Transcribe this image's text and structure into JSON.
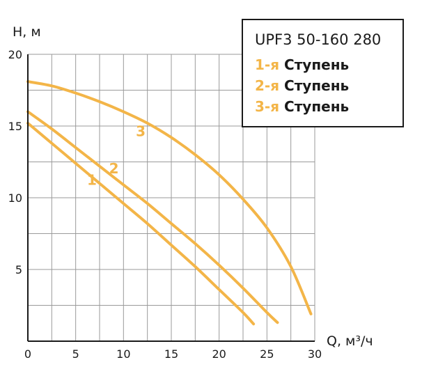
{
  "chart_data": {
    "type": "line",
    "title": "",
    "xlabel": "Q, м³/ч",
    "ylabel": "H, м",
    "xlim": [
      0,
      30
    ],
    "ylim": [
      0,
      20
    ],
    "x_ticks": [
      0,
      5,
      10,
      15,
      20,
      25,
      30
    ],
    "y_ticks": [
      5,
      10,
      15,
      20
    ],
    "x_tick_labels": [
      "0",
      "5",
      "10",
      "15",
      "20",
      "25",
      "30"
    ],
    "y_tick_labels": [
      "5",
      "10",
      "15",
      "20"
    ],
    "grid": true,
    "curve_color": "#f3b548",
    "series": [
      {
        "name": "1",
        "x": [
          0,
          2.5,
          5,
          7.5,
          10,
          12.5,
          15,
          17.5,
          20,
          22.5,
          23.6
        ],
        "y": [
          15.2,
          13.8,
          12.4,
          11.0,
          9.6,
          8.2,
          6.7,
          5.2,
          3.6,
          2.0,
          1.2
        ]
      },
      {
        "name": "2",
        "x": [
          0,
          2.5,
          5,
          7.5,
          10,
          12.5,
          15,
          17.5,
          20,
          22.5,
          25,
          26.1
        ],
        "y": [
          16.0,
          14.8,
          13.5,
          12.2,
          10.9,
          9.6,
          8.2,
          6.8,
          5.3,
          3.7,
          2.0,
          1.3
        ]
      },
      {
        "name": "3",
        "x": [
          0,
          2.5,
          5,
          7.5,
          10,
          12.5,
          15,
          17.5,
          20,
          22.5,
          25,
          27.5,
          29.6
        ],
        "y": [
          18.1,
          17.8,
          17.3,
          16.7,
          16.0,
          15.2,
          14.2,
          13.0,
          11.6,
          9.9,
          7.9,
          5.2,
          1.9
        ]
      }
    ],
    "curve_labels": [
      {
        "text": "1",
        "x": 6.7,
        "y": 10.9
      },
      {
        "text": "2",
        "x": 9.0,
        "y": 11.7
      },
      {
        "text": "3",
        "x": 11.8,
        "y": 14.3
      }
    ]
  },
  "legend": {
    "title": "UPF3 50-160 280",
    "items": [
      {
        "num": "1-я",
        "label": "Ступень"
      },
      {
        "num": "2-я",
        "label": "Ступень"
      },
      {
        "num": "3-я",
        "label": "Ступень"
      }
    ]
  }
}
